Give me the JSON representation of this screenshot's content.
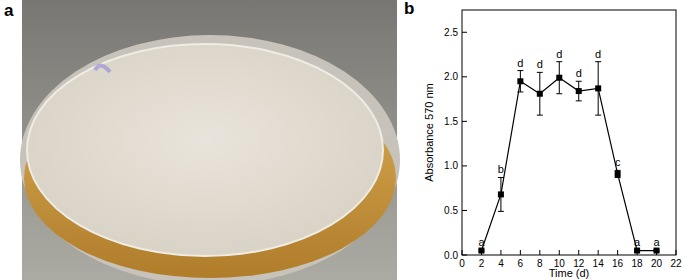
{
  "panel_labels": [
    "a",
    "b"
  ],
  "chart_data": {
    "type": "line",
    "x_label": "Time (d)",
    "y_label": "Absorbance 570 nm",
    "x": [
      2,
      4,
      6,
      8,
      10,
      12,
      14,
      16,
      18,
      20
    ],
    "values": [
      0.05,
      0.68,
      1.95,
      1.81,
      1.99,
      1.84,
      1.87,
      0.91,
      0.05,
      0.05
    ],
    "errors": [
      0.01,
      0.19,
      0.12,
      0.24,
      0.18,
      0.11,
      0.3,
      0.04,
      0.01,
      0.01
    ],
    "letters": [
      "a",
      "b",
      "d",
      "d",
      "d",
      "d",
      "d",
      "c",
      "a",
      "a"
    ],
    "xlim": [
      0,
      22
    ],
    "xticks": [
      0,
      2,
      4,
      6,
      8,
      10,
      12,
      14,
      16,
      18,
      20,
      22
    ],
    "ylim": [
      0,
      2.75
    ],
    "yticks": [
      {
        "value": 0,
        "label": "0.0"
      },
      0.5,
      {
        "value": 1,
        "label": "1.0"
      },
      1.5,
      {
        "value": 2,
        "label": "2.0"
      },
      2.5
    ],
    "color": "#000000",
    "marker": "square",
    "line_style": "solid",
    "grid": false
  }
}
